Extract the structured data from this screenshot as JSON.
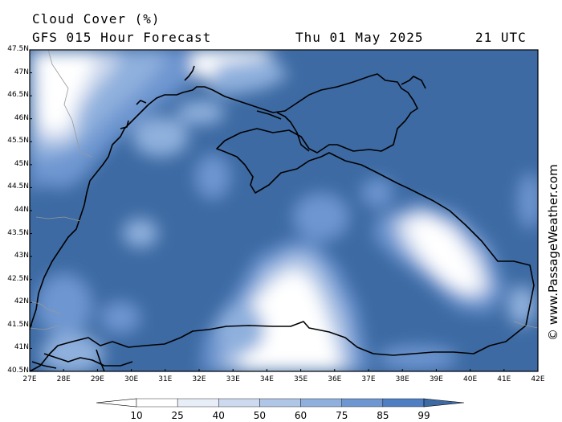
{
  "header": {
    "title": "Cloud Cover (%)",
    "subtitle": "GFS 015 Hour Forecast",
    "date": "Thu 01 May 2025",
    "time": "21 UTC"
  },
  "axes": {
    "lat_labels": [
      "47.5N",
      "47N",
      "46.5N",
      "46N",
      "45.5N",
      "45N",
      "44.5N",
      "44N",
      "43.5N",
      "43N",
      "42.5N",
      "42N",
      "41.5N",
      "41N",
      "40.5N"
    ],
    "lon_labels": [
      "27E",
      "28E",
      "29E",
      "30E",
      "31E",
      "32E",
      "33E",
      "34E",
      "35E",
      "36E",
      "37E",
      "38E",
      "39E",
      "40E",
      "41E",
      "42E"
    ]
  },
  "colorbar": {
    "labels": [
      "10",
      "25",
      "40",
      "50",
      "60",
      "75",
      "85",
      "99"
    ],
    "colors": [
      "#ffffff",
      "#e8eef8",
      "#cdd9ee",
      "#b0c6e6",
      "#8fb0dd",
      "#6e96d0",
      "#4f7fc2",
      "#3d6aa3"
    ]
  },
  "watermark": "© www.PassageWeather.com",
  "colors": {
    "overcast": "#3d6aa3",
    "clear": "#ffffff",
    "coastline": "#000000",
    "border": "#999999"
  }
}
